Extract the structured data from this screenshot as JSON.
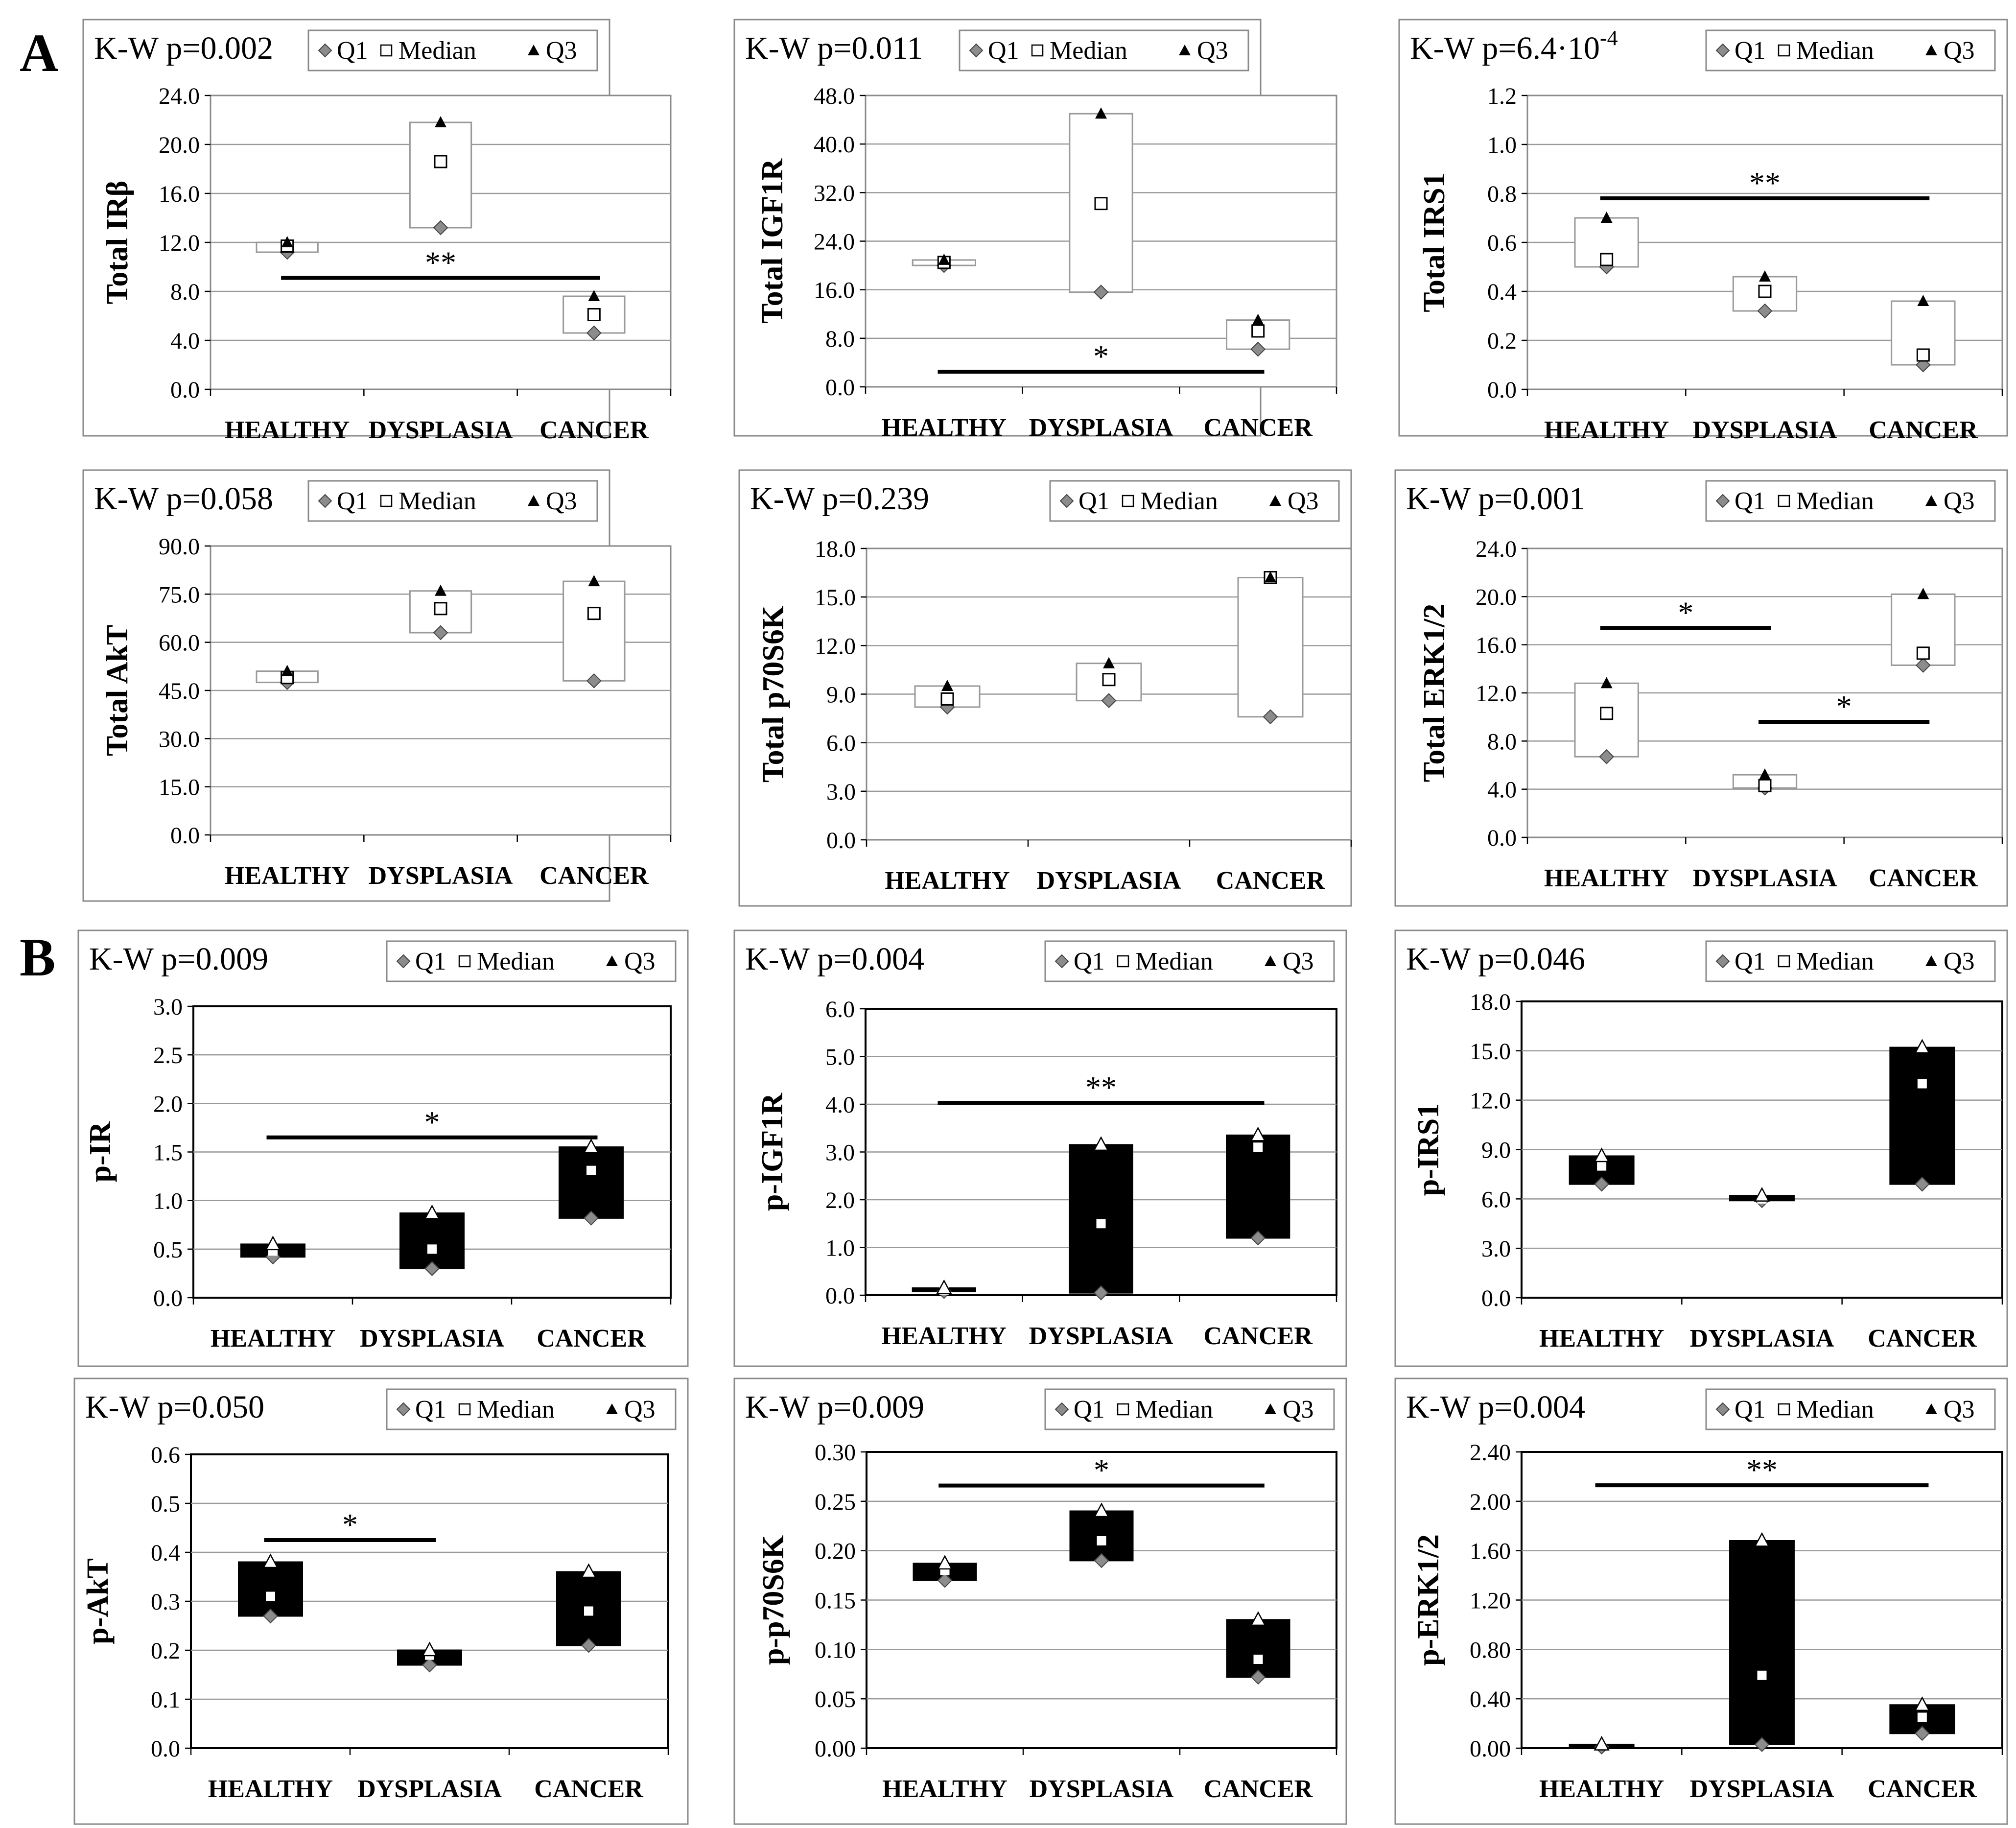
{
  "section_labels": {
    "a": "A",
    "b": "B"
  },
  "legend": {
    "q1": "Q1",
    "median": "Median",
    "q3": "Q3"
  },
  "chart_data": [
    {
      "id": "A1",
      "type": "box",
      "style": "open",
      "title": "K-W p=0.002",
      "ylabel": "Total IRβ",
      "ylim": [
        0,
        24
      ],
      "yticks": [
        "0.0",
        "4.0",
        "8.0",
        "12.0",
        "16.0",
        "20.0",
        "24.0"
      ],
      "categories": [
        "HEALTHY",
        "DYSPLASIA",
        "CANCER"
      ],
      "q1": [
        11.2,
        13.2,
        4.6
      ],
      "median": [
        11.7,
        18.6,
        6.1
      ],
      "q3": [
        12.0,
        21.8,
        7.6
      ],
      "significance": [
        {
          "label": "**",
          "from": 0,
          "to": 2,
          "y": 9.1
        }
      ]
    },
    {
      "id": "A2",
      "type": "box",
      "style": "open",
      "title": "K-W p=0.011",
      "ylabel": "Total IGF1R",
      "ylim": [
        0,
        48
      ],
      "yticks": [
        "0.0",
        "8.0",
        "16.0",
        "24.0",
        "32.0",
        "40.0",
        "48.0"
      ],
      "categories": [
        "HEALTHY",
        "DYSPLASIA",
        "CANCER"
      ],
      "q1": [
        20.0,
        15.6,
        6.2
      ],
      "median": [
        20.5,
        30.2,
        9.2
      ],
      "q3": [
        20.9,
        45.0,
        11.0
      ],
      "significance": [
        {
          "label": "*",
          "from": 0,
          "to": 2,
          "y": 2.5
        }
      ]
    },
    {
      "id": "A3",
      "type": "box",
      "style": "open",
      "title": "K-W p=6.4·10",
      "title_sup": "-4",
      "ylabel": "Total IRS1",
      "ylim": [
        0,
        1.2
      ],
      "yticks": [
        "0.0",
        "0.2",
        "0.4",
        "0.6",
        "0.8",
        "1.0",
        "1.2"
      ],
      "categories": [
        "HEALTHY",
        "DYSPLASIA",
        "CANCER"
      ],
      "q1": [
        0.5,
        0.32,
        0.1
      ],
      "median": [
        0.53,
        0.4,
        0.14
      ],
      "q3": [
        0.7,
        0.46,
        0.36
      ],
      "significance": [
        {
          "label": "**",
          "from": 0,
          "to": 2,
          "y": 0.78
        }
      ]
    },
    {
      "id": "A4",
      "type": "box",
      "style": "open",
      "title": "K-W p=0.058",
      "ylabel": "Total AkT",
      "ylim": [
        0,
        90
      ],
      "yticks": [
        "0.0",
        "15.0",
        "30.0",
        "45.0",
        "60.0",
        "75.0",
        "90.0"
      ],
      "categories": [
        "HEALTHY",
        "DYSPLASIA",
        "CANCER"
      ],
      "q1": [
        47.5,
        63.0,
        48.0
      ],
      "median": [
        49.0,
        70.5,
        69.0
      ],
      "q3": [
        51.0,
        76.0,
        79.0
      ],
      "significance": []
    },
    {
      "id": "A5",
      "type": "box",
      "style": "open",
      "title": "K-W p=0.239",
      "ylabel": "Total p70S6K",
      "ylim": [
        0,
        18
      ],
      "yticks": [
        "0.0",
        "3.0",
        "6.0",
        "9.0",
        "12.0",
        "15.0",
        "18.0"
      ],
      "categories": [
        "HEALTHY",
        "DYSPLASIA",
        "CANCER"
      ],
      "q1": [
        8.2,
        8.6,
        7.6
      ],
      "median": [
        8.7,
        9.9,
        16.2
      ],
      "q3": [
        9.5,
        10.9,
        16.2
      ],
      "significance": []
    },
    {
      "id": "A6",
      "type": "box",
      "style": "open",
      "title": "K-W p=0.001",
      "ylabel": "Total ERK1/2",
      "ylim": [
        0,
        24
      ],
      "yticks": [
        "0.0",
        "4.0",
        "8.0",
        "12.0",
        "16.0",
        "20.0",
        "24.0"
      ],
      "categories": [
        "HEALTHY",
        "DYSPLASIA",
        "CANCER"
      ],
      "q1": [
        6.7,
        4.1,
        14.3
      ],
      "median": [
        10.3,
        4.3,
        15.3
      ],
      "q3": [
        12.8,
        5.2,
        20.2
      ],
      "significance": [
        {
          "label": "*",
          "from": 0,
          "to": 1,
          "y": 17.4
        },
        {
          "label": "*",
          "from": 1,
          "to": 2,
          "y": 9.6
        }
      ]
    },
    {
      "id": "B1",
      "type": "box",
      "style": "filled",
      "title": "K-W p=0.009",
      "ylabel": "p-IR",
      "ylim": [
        0,
        3.0
      ],
      "yticks": [
        "0.0",
        "0.5",
        "1.0",
        "1.5",
        "2.0",
        "2.5",
        "3.0"
      ],
      "categories": [
        "HEALTHY",
        "DYSPLASIA",
        "CANCER"
      ],
      "q1": [
        0.42,
        0.3,
        0.82
      ],
      "median": [
        0.48,
        0.5,
        1.31
      ],
      "q3": [
        0.55,
        0.87,
        1.55
      ],
      "significance": [
        {
          "label": "*",
          "from": 0,
          "to": 2,
          "y": 1.65
        }
      ]
    },
    {
      "id": "B2",
      "type": "box",
      "style": "filled",
      "title": "K-W p=0.004",
      "ylabel": "p-IGF1R",
      "ylim": [
        0,
        6.0
      ],
      "yticks": [
        "0.0",
        "1.0",
        "2.0",
        "3.0",
        "4.0",
        "5.0",
        "6.0"
      ],
      "categories": [
        "HEALTHY",
        "DYSPLASIA",
        "CANCER"
      ],
      "q1": [
        0.08,
        0.05,
        1.2
      ],
      "median": [
        0.11,
        1.5,
        3.1
      ],
      "q3": [
        0.15,
        3.15,
        3.35
      ],
      "significance": [
        {
          "label": "**",
          "from": 0,
          "to": 2,
          "y": 4.03
        }
      ]
    },
    {
      "id": "B3",
      "type": "box",
      "style": "filled",
      "title": "K-W p=0.046",
      "ylabel": "p-IRS1",
      "ylim": [
        0,
        18.0
      ],
      "yticks": [
        "0.0",
        "3.0",
        "6.0",
        "9.0",
        "12.0",
        "15.0",
        "18.0"
      ],
      "categories": [
        "HEALTHY",
        "DYSPLASIA",
        "CANCER"
      ],
      "q1": [
        6.9,
        5.9,
        6.9
      ],
      "median": [
        8.0,
        6.0,
        13.0
      ],
      "q3": [
        8.6,
        6.2,
        15.2
      ],
      "significance": []
    },
    {
      "id": "B4",
      "type": "box",
      "style": "filled",
      "title": "K-W p=0.050",
      "ylabel": "p-AkT",
      "ylim": [
        0,
        0.6
      ],
      "yticks": [
        "0.0",
        "0.1",
        "0.2",
        "0.3",
        "0.4",
        "0.5",
        "0.6"
      ],
      "categories": [
        "HEALTHY",
        "DYSPLASIA",
        "CANCER"
      ],
      "q1": [
        0.27,
        0.17,
        0.21
      ],
      "median": [
        0.31,
        0.19,
        0.28
      ],
      "q3": [
        0.38,
        0.2,
        0.36
      ],
      "significance": [
        {
          "label": "*",
          "from": 0,
          "to": 1,
          "y": 0.425
        }
      ]
    },
    {
      "id": "B5",
      "type": "box",
      "style": "filled",
      "title": "K-W p=0.009",
      "ylabel": "p-p70S6K",
      "ylim": [
        0,
        0.3
      ],
      "yticks": [
        "0.00",
        "0.05",
        "0.10",
        "0.15",
        "0.20",
        "0.25",
        "0.30"
      ],
      "categories": [
        "HEALTHY",
        "DYSPLASIA",
        "CANCER"
      ],
      "q1": [
        0.17,
        0.19,
        0.072
      ],
      "median": [
        0.18,
        0.21,
        0.09
      ],
      "q3": [
        0.187,
        0.24,
        0.13
      ],
      "significance": [
        {
          "label": "*",
          "from": 0,
          "to": 2,
          "y": 0.266
        }
      ]
    },
    {
      "id": "B6",
      "type": "box",
      "style": "filled",
      "title": "K-W p=0.004",
      "ylabel": "p-ERK1/2",
      "ylim": [
        0,
        2.4
      ],
      "yticks": [
        "0.00",
        "0.40",
        "0.80",
        "1.20",
        "1.60",
        "2.00",
        "2.40"
      ],
      "categories": [
        "HEALTHY",
        "DYSPLASIA",
        "CANCER"
      ],
      "q1": [
        0.01,
        0.03,
        0.12
      ],
      "median": [
        0.02,
        0.59,
        0.25
      ],
      "q3": [
        0.03,
        1.68,
        0.35
      ],
      "significance": [
        {
          "label": "**",
          "from": 0,
          "to": 2,
          "y": 2.13
        }
      ]
    }
  ]
}
